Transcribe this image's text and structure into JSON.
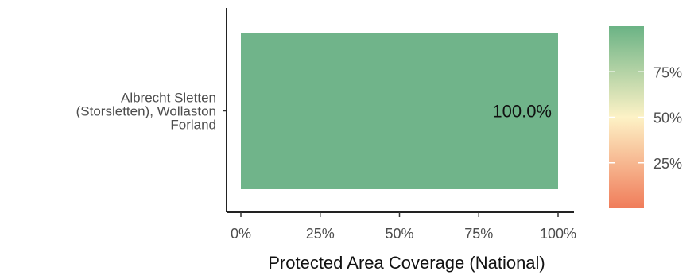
{
  "chart_data": {
    "type": "bar",
    "orientation": "horizontal",
    "categories": [
      "Albrecht Sletten (Storsletten), Wollaston Forland"
    ],
    "category_label_lines": [
      [
        "Albrecht Sletten",
        "(Storsletten), Wollaston",
        "Forland"
      ]
    ],
    "values": [
      100.0
    ],
    "data_labels": [
      "100.0%"
    ],
    "xlabel": "Protected Area Coverage (National)",
    "ylabel": "",
    "xlim": [
      0,
      100
    ],
    "x_ticks": [
      0,
      25,
      50,
      75,
      100
    ],
    "x_tick_labels": [
      "0%",
      "25%",
      "50%",
      "75%",
      "100%"
    ],
    "bar_color": "#70B48A",
    "grid": false,
    "legend": {
      "type": "colorbar",
      "placement": "right",
      "range": [
        0,
        100
      ],
      "ticks": [
        25,
        50,
        75
      ],
      "tick_labels": [
        "25%",
        "50%",
        "75%"
      ],
      "colors": [
        "#F07C5A",
        "#FDF2C6",
        "#6BB385"
      ]
    }
  }
}
